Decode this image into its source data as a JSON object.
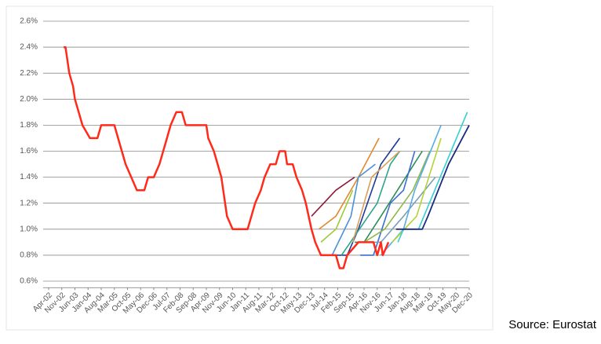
{
  "chart_data": {
    "type": "line",
    "source": "Source: Eurostat",
    "xlim": [
      "Apr-02",
      "Dec-20"
    ],
    "xticks": [
      "Apr-02",
      "Nov-02",
      "Jun-03",
      "Jan-04",
      "Aug-04",
      "Mar-05",
      "Oct-05",
      "May-06",
      "Dec-06",
      "Jul-07",
      "Feb-08",
      "Sep-08",
      "Apr-09",
      "Nov-09",
      "Jun-10",
      "Jan-11",
      "Aug-11",
      "Mar-12",
      "Oct-12",
      "May-13",
      "Dec-13",
      "Jul-14",
      "Feb-15",
      "Sep-15",
      "Apr-16",
      "Nov-16",
      "Jun-17",
      "Jan-18",
      "Aug-18",
      "Mar-19",
      "Oct-19",
      "May-20",
      "Dec-20"
    ],
    "ylim": [
      0.55,
      2.65
    ],
    "yticks": [
      {
        "value": 0.6,
        "label": "0.6%"
      },
      {
        "value": 0.8,
        "label": "0.8%"
      },
      {
        "value": 1.0,
        "label": "1.0%"
      },
      {
        "value": 1.2,
        "label": "1.2%"
      },
      {
        "value": 1.4,
        "label": "1.4%"
      },
      {
        "value": 1.6,
        "label": "1.6%"
      },
      {
        "value": 1.8,
        "label": "1.8%"
      },
      {
        "value": 2.0,
        "label": "2.0%"
      },
      {
        "value": 2.2,
        "label": "2.2%"
      },
      {
        "value": 2.4,
        "label": "2.4%"
      },
      {
        "value": 2.6,
        "label": "2.6%"
      }
    ],
    "grid": true,
    "series": [
      {
        "color": "#ff2a1a",
        "width": 2.5,
        "x": [
          "Dec-02",
          "Jan-03",
          "Mar-03",
          "May-03",
          "Jun-03",
          "Aug-03",
          "Oct-03",
          "Feb-04",
          "Jun-04",
          "Aug-04",
          "Mar-05",
          "May-05",
          "Jul-05",
          "Sep-05",
          "Dec-05",
          "Mar-06",
          "Jul-06",
          "Sep-06",
          "Dec-06",
          "Mar-07",
          "May-07",
          "Jul-07",
          "Sep-07",
          "Dec-07",
          "Mar-08",
          "May-08",
          "Apr-09",
          "May-09",
          "Aug-09",
          "Oct-09",
          "Dec-09",
          "Feb-10",
          "Mar-10",
          "Jun-10",
          "Feb-11",
          "Apr-11",
          "Jun-11",
          "Sep-11",
          "Nov-11",
          "Feb-12",
          "May-12",
          "Jul-12",
          "Oct-12",
          "Nov-12",
          "Feb-13",
          "Apr-13",
          "Jul-13",
          "Sep-13",
          "Dec-13",
          "Feb-14",
          "May-14",
          "Jan-15",
          "Mar-15",
          "May-15",
          "Jul-15",
          "Jan-16",
          "Sep-16",
          "Nov-16",
          "Jan-17",
          "Feb-17",
          "May-17"
        ],
        "values": [
          2.4,
          2.4,
          2.2,
          2.1,
          2.0,
          1.9,
          1.8,
          1.7,
          1.7,
          1.8,
          1.8,
          1.7,
          1.6,
          1.5,
          1.4,
          1.3,
          1.3,
          1.4,
          1.4,
          1.5,
          1.6,
          1.7,
          1.8,
          1.9,
          1.9,
          1.8,
          1.8,
          1.7,
          1.6,
          1.5,
          1.4,
          1.2,
          1.1,
          1.0,
          1.0,
          1.1,
          1.2,
          1.3,
          1.4,
          1.5,
          1.5,
          1.6,
          1.6,
          1.5,
          1.5,
          1.4,
          1.3,
          1.2,
          1.0,
          0.9,
          0.8,
          0.8,
          0.7,
          0.7,
          0.8,
          0.9,
          0.9,
          0.8,
          0.9,
          0.8,
          0.9
        ]
      },
      {
        "color": "#8b1a3a",
        "width": 1.6,
        "x": [
          "Dec-13",
          "Jan-15",
          "Nov-15"
        ],
        "values": [
          1.1,
          1.3,
          1.4
        ]
      },
      {
        "color": "#e08a2e",
        "width": 1.6,
        "x": [
          "Apr-14",
          "Jan-15",
          "Jan-16",
          "Dec-16"
        ],
        "values": [
          1.0,
          1.1,
          1.4,
          1.7
        ]
      },
      {
        "color": "#9acd32",
        "width": 1.6,
        "x": [
          "May-14",
          "Jan-15",
          "Oct-15"
        ],
        "values": [
          0.9,
          1.0,
          1.3
        ]
      },
      {
        "color": "#4a90d9",
        "width": 1.6,
        "x": [
          "Nov-14",
          "Sep-15",
          "Jan-16",
          "Oct-16"
        ],
        "values": [
          0.8,
          1.1,
          1.4,
          1.5
        ]
      },
      {
        "color": "#1f3a93",
        "width": 1.6,
        "x": [
          "Jan-15",
          "Jul-15",
          "Jan-16",
          "Jan-17",
          "Nov-17"
        ],
        "values": [
          0.8,
          0.8,
          1.0,
          1.5,
          1.7
        ]
      },
      {
        "color": "#2ca58d",
        "width": 1.6,
        "x": [
          "Apr-15",
          "Nov-16",
          "Jun-17",
          "Nov-17"
        ],
        "values": [
          0.8,
          1.2,
          1.5,
          1.6
        ]
      },
      {
        "color": "#d9a05b",
        "width": 1.6,
        "x": [
          "Oct-15",
          "Aug-16",
          "Nov-17"
        ],
        "values": [
          0.9,
          1.4,
          1.6
        ]
      },
      {
        "color": "#2e8b57",
        "width": 1.6,
        "x": [
          "Nov-15",
          "Apr-16",
          "Jan-17",
          "Nov-18"
        ],
        "values": [
          0.9,
          0.9,
          1.1,
          1.6
        ]
      },
      {
        "color": "#3a6fd0",
        "width": 1.6,
        "x": [
          "Feb-16",
          "Sep-16",
          "Jun-17",
          "Jan-18",
          "Jul-18"
        ],
        "values": [
          0.8,
          0.8,
          1.2,
          1.3,
          1.6
        ]
      },
      {
        "color": "#8fb84a",
        "width": 1.6,
        "x": [
          "Apr-16",
          "Mar-17",
          "Jun-18",
          "Mar-19"
        ],
        "values": [
          0.9,
          1.0,
          1.3,
          1.6
        ]
      },
      {
        "color": "#7aa0b8",
        "width": 1.6,
        "x": [
          "Sep-16",
          "Jan-17",
          "Jan-18",
          "Jun-19"
        ],
        "values": [
          0.9,
          0.9,
          1.1,
          1.4
        ]
      },
      {
        "color": "#5aaae6",
        "width": 1.6,
        "x": [
          "Jan-17",
          "Jan-18",
          "Jul-18",
          "Sep-19"
        ],
        "values": [
          0.8,
          1.0,
          1.3,
          1.8
        ]
      },
      {
        "color": "#b5d334",
        "width": 1.6,
        "x": [
          "Jul-17",
          "Aug-18",
          "Sep-19"
        ],
        "values": [
          0.9,
          1.1,
          1.7
        ]
      },
      {
        "color": "#34d0d0",
        "width": 1.6,
        "x": [
          "Oct-17",
          "Jan-18",
          "Sep-18",
          "Nov-20"
        ],
        "values": [
          0.9,
          1.0,
          1.0,
          1.9
        ]
      },
      {
        "color": "#1a2a80",
        "width": 1.8,
        "x": [
          "Sep-17",
          "Nov-18",
          "Feb-19",
          "Jan-20",
          "Dec-20"
        ],
        "values": [
          1.0,
          1.0,
          1.1,
          1.5,
          1.8
        ]
      }
    ]
  }
}
